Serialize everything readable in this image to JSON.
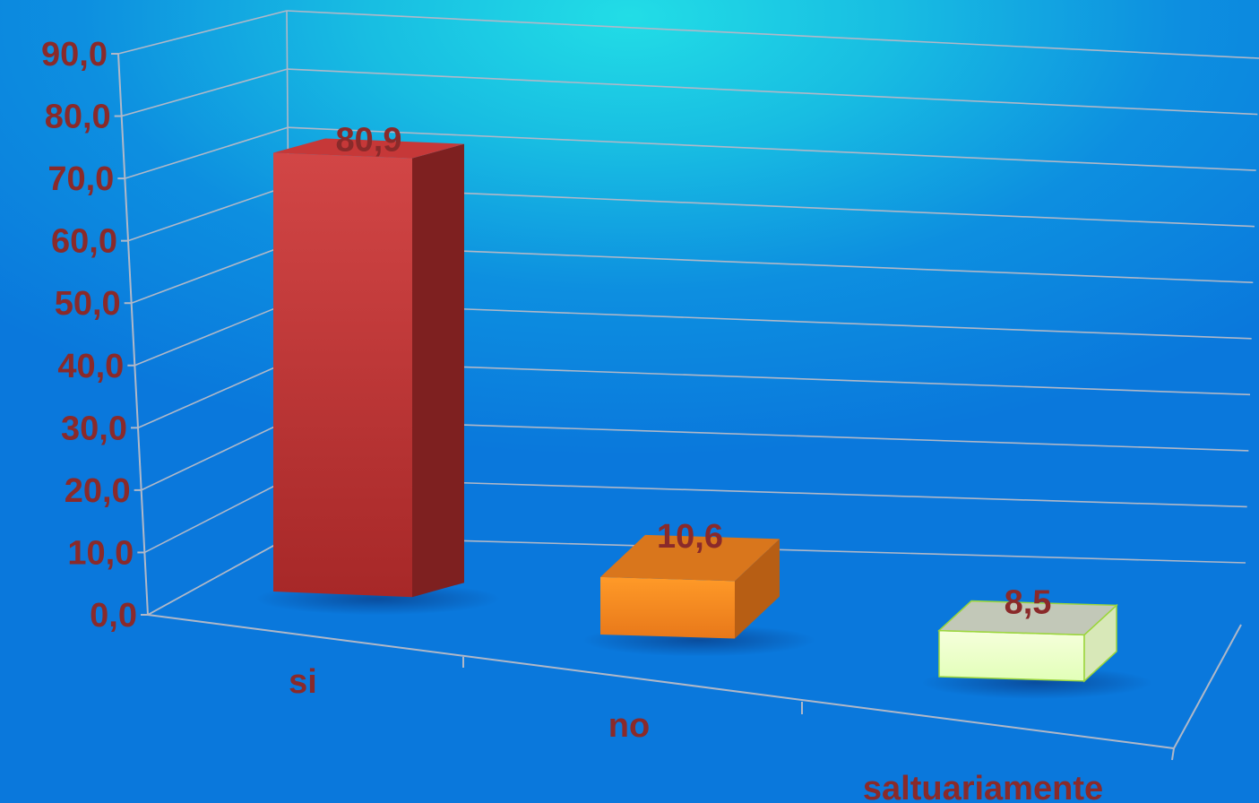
{
  "chart_data": {
    "type": "bar",
    "style": "3d",
    "categories": [
      "si",
      "no",
      "saltuariamente"
    ],
    "values": [
      80.9,
      10.6,
      8.5
    ],
    "value_labels": [
      "80,9",
      "10,6",
      "8,5"
    ],
    "ylim": [
      0,
      90
    ],
    "yticks": [
      "0,0",
      "10,0",
      "20,0",
      "30,0",
      "40,0",
      "50,0",
      "60,0",
      "70,0",
      "80,0",
      "90,0"
    ],
    "grid": true,
    "legend": "none",
    "colors": {
      "bars": [
        "#c83434",
        "#f08a1e",
        "#eaffc8"
      ],
      "labels": "#8a2a2a",
      "gridlines": "#b0b8c8",
      "background_top": "#22dde6",
      "background_bottom": "#0a78dc"
    }
  }
}
